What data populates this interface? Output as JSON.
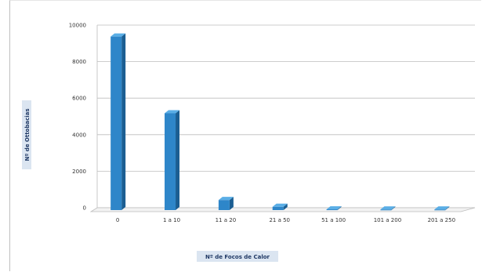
{
  "chart_data": {
    "type": "bar",
    "title": "",
    "xlabel": "Nº de Focos de Calor",
    "ylabel": "Nº de Ottobacias",
    "categories": [
      "0",
      "1 a 10",
      "11 a 20",
      "21 a 50",
      "51 a 100",
      "101 a 200",
      "201 a 250"
    ],
    "values": [
      9500,
      5300,
      550,
      180,
      40,
      30,
      30
    ],
    "yticks": [
      "0",
      "2000",
      "4000",
      "6000",
      "8000",
      "10000"
    ],
    "ylim": [
      0,
      10000
    ],
    "grid": true,
    "legend": "none",
    "bar_color": "#2e86c9",
    "bar_side_color": "#1b5e92",
    "bar_top_color": "#5aaee6"
  }
}
